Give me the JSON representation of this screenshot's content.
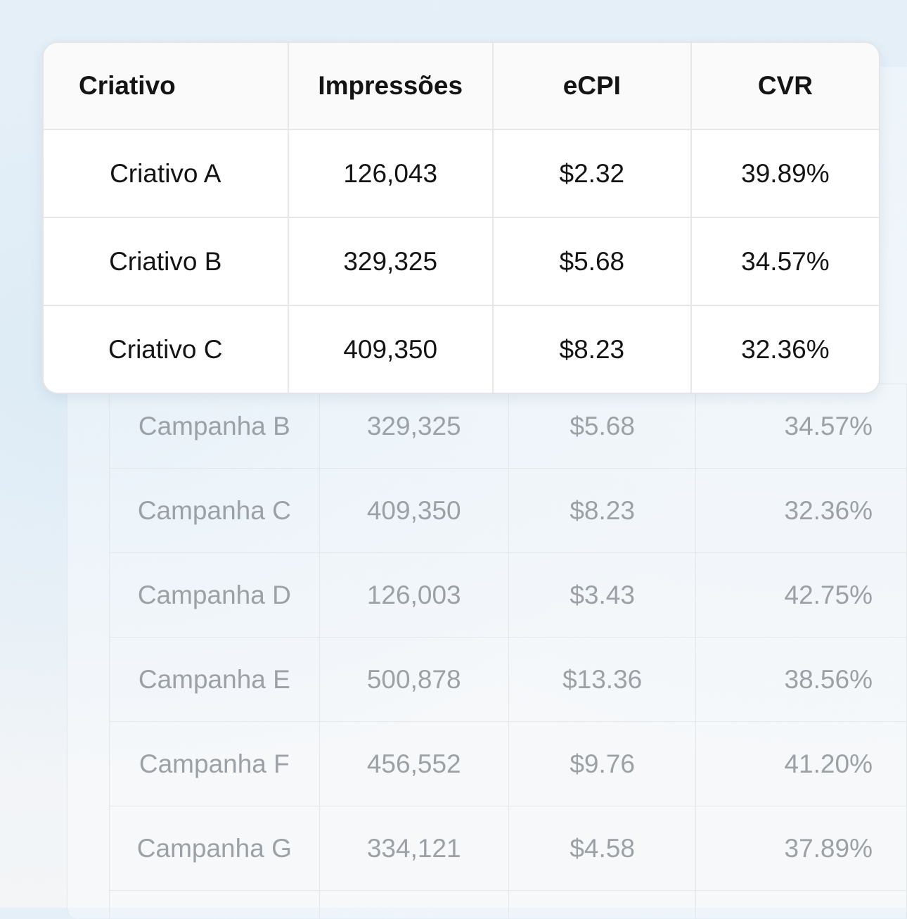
{
  "background_table": {
    "rows": [
      [
        "Campanha B",
        "329,325",
        "$5.68",
        "34.57%"
      ],
      [
        "Campanha C",
        "409,350",
        "$8.23",
        "32.36%"
      ],
      [
        "Campanha D",
        "126,003",
        "$3.43",
        "42.75%"
      ],
      [
        "Campanha E",
        "500,878",
        "$13.36",
        "38.56%"
      ],
      [
        "Campanha F",
        "456,552",
        "$9.76",
        "41.20%"
      ],
      [
        "Campanha G",
        "334,121",
        "$4.58",
        "37.89%"
      ]
    ]
  },
  "creative_table": {
    "headers": [
      "Criativo",
      "Impressões",
      "eCPI",
      "CVR"
    ],
    "rows": [
      [
        "Criativo A",
        "126,043",
        "$2.32",
        "39.89%"
      ],
      [
        "Criativo B",
        "329,325",
        "$5.68",
        "34.57%"
      ],
      [
        "Criativo C",
        "409,350",
        "$8.23",
        "32.36%"
      ]
    ]
  }
}
